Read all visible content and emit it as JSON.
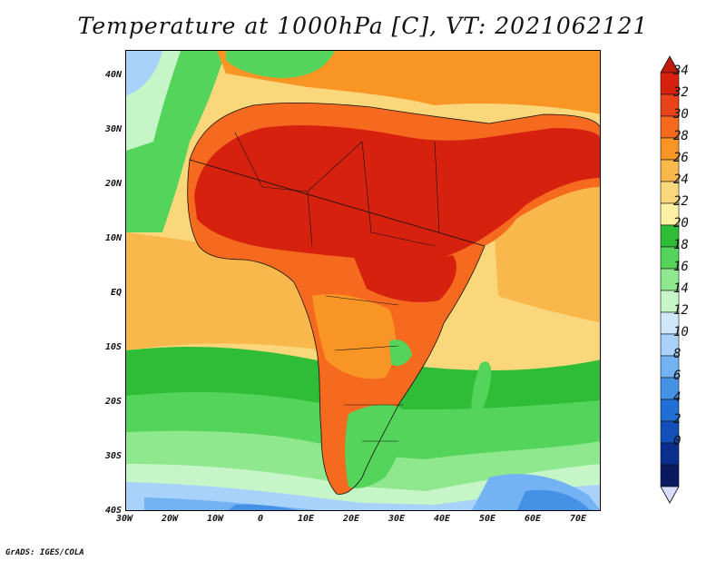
{
  "title": "Temperature at 1000hPa [C], VT: 2021062121",
  "credit": "GrADS: IGES/COLA",
  "lat_ticks": [
    "40N",
    "30N",
    "20N",
    "10N",
    "EQ",
    "10S",
    "20S",
    "30S",
    "40S"
  ],
  "lon_ticks": [
    "30W",
    "20W",
    "10W",
    "0",
    "10E",
    "20E",
    "30E",
    "40E",
    "50E",
    "60E",
    "70E"
  ],
  "colorbar": {
    "labels": [
      "34",
      "32",
      "30",
      "28",
      "26",
      "24",
      "22",
      "20",
      "18",
      "16",
      "14",
      "12",
      "10",
      "8",
      "6",
      "4",
      "2",
      "0"
    ],
    "colors": [
      "#d7210f",
      "#e8431b",
      "#f56a1f",
      "#f99525",
      "#f8b84b",
      "#fbd77b",
      "#fbf0a3",
      "#2fbd37",
      "#54d45a",
      "#8fe88e",
      "#c6f6c7",
      "#cfe7fa",
      "#a8d2fa",
      "#73b2f3",
      "#4591e6",
      "#1f6fd5",
      "#124fb9",
      "#0b2f8f",
      "#0a1a60"
    ],
    "over_color": "#c21b0b",
    "under_color": "#d9dcff"
  },
  "map_layers": {
    "ocean_base": "#fbd77b",
    "tropical_ocean": "#f8b84b",
    "south_ocean_bands": [
      "#2fbd37",
      "#54d45a",
      "#8fe88e",
      "#c6f6c7",
      "#a8d2fa",
      "#73b2f3",
      "#4591e6"
    ],
    "north_atlantic": "#54d45a",
    "land_warm": "#f56a1f",
    "land_hot": "#d7210f",
    "land_mild": "#f99525",
    "land_cool": "#54d45a"
  }
}
